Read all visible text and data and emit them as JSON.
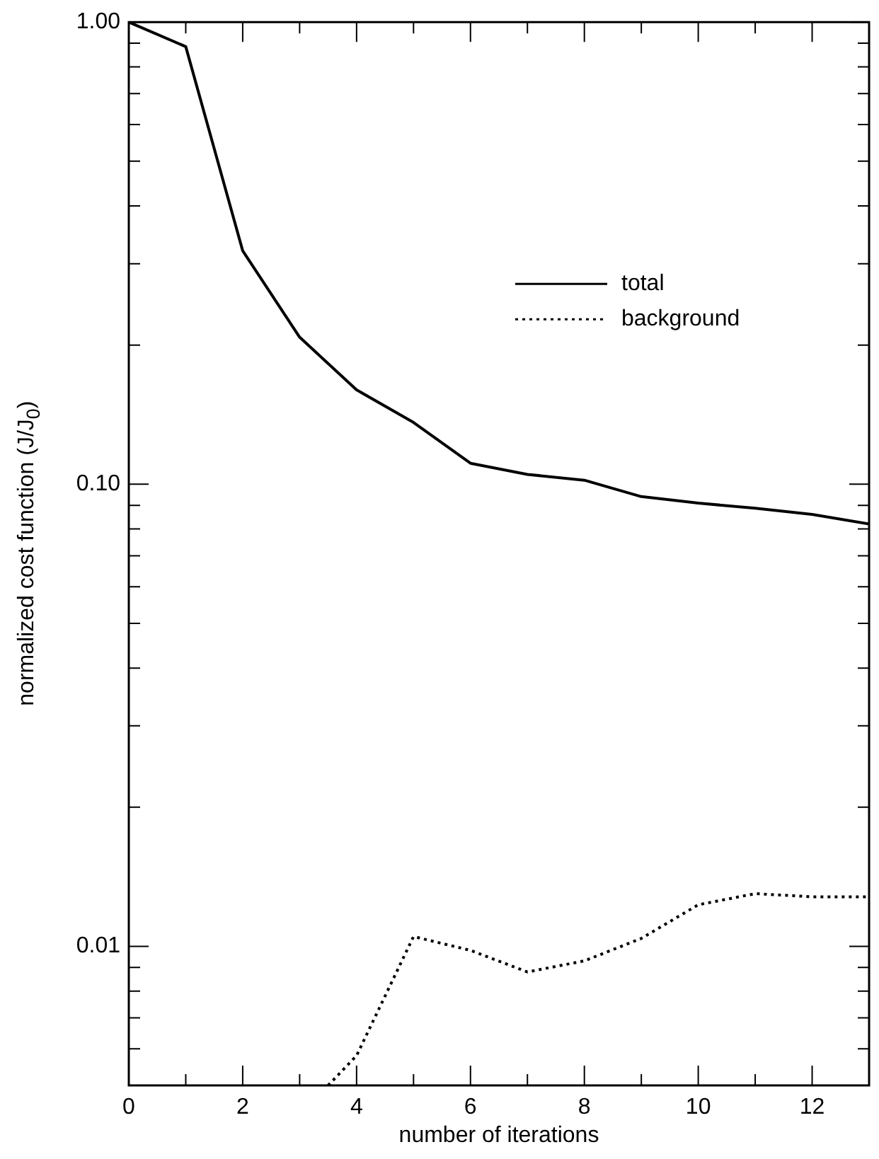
{
  "chart_data": {
    "type": "line",
    "xlabel": "number of iterations",
    "ylabel": "normalized cost function (J/J$_{0}$)",
    "log": "y",
    "xlim": [
      0,
      13
    ],
    "xticks": [
      0,
      {
        "value": 1,
        "label": null
      },
      2,
      {
        "value": 3,
        "label": null
      },
      4,
      {
        "value": 5,
        "label": null
      },
      6,
      {
        "value": 7,
        "label": null
      },
      8,
      {
        "value": 9,
        "label": null
      },
      10,
      {
        "value": 11,
        "label": null
      },
      12,
      {
        "value": 13,
        "label": null
      }
    ],
    "ylim": [
      0.005,
      1
    ],
    "yticks": [
      {
        "value": 0.005,
        "label": null
      },
      {
        "value": 0.006,
        "label": null
      },
      {
        "value": 0.007,
        "label": null
      },
      {
        "value": 0.008,
        "label": null
      },
      {
        "value": 0.009,
        "label": null
      },
      {
        "value": 0.01,
        "label": "0.01"
      },
      {
        "value": 0.02,
        "label": null
      },
      {
        "value": 0.03,
        "label": null
      },
      {
        "value": 0.04,
        "label": null
      },
      {
        "value": 0.05,
        "label": null
      },
      {
        "value": 0.06,
        "label": null
      },
      {
        "value": 0.07,
        "label": null
      },
      {
        "value": 0.08,
        "label": null
      },
      {
        "value": 0.09,
        "label": null
      },
      {
        "value": 0.1,
        "label": "0.10"
      },
      {
        "value": 0.2,
        "label": null
      },
      {
        "value": 0.3,
        "label": null
      },
      {
        "value": 0.4,
        "label": null
      },
      {
        "value": 0.5,
        "label": null
      },
      {
        "value": 0.6,
        "label": null
      },
      {
        "value": 0.7,
        "label": null
      },
      {
        "value": 0.8,
        "label": null
      },
      {
        "value": 0.9,
        "label": null
      },
      {
        "value": 1,
        "label": "1.00"
      }
    ],
    "legend": "top right",
    "marker": "none",
    "series": [
      {
        "name": "total",
        "color": "#000000",
        "line_style": "solid",
        "x": [
          0,
          1,
          2,
          3,
          4,
          5,
          6,
          7,
          8,
          9,
          10,
          11,
          12,
          13
        ],
        "values": [
          1,
          0.885,
          0.32,
          0.208,
          0.16,
          0.136,
          0.111,
          0.105,
          0.102,
          0.094,
          0.091,
          0.0887,
          0.086,
          0.082
        ]
      },
      {
        "name": "background",
        "color": "#000000",
        "line_style": "dotted",
        "x": [
          3.5,
          4,
          5,
          6,
          7,
          8,
          9,
          10,
          11,
          12,
          13
        ],
        "values": [
          0.005,
          0.0058,
          0.0105,
          0.0098,
          0.0088,
          0.0093,
          0.0104,
          0.0123,
          0.013,
          0.0128,
          0.0128
        ]
      }
    ]
  }
}
